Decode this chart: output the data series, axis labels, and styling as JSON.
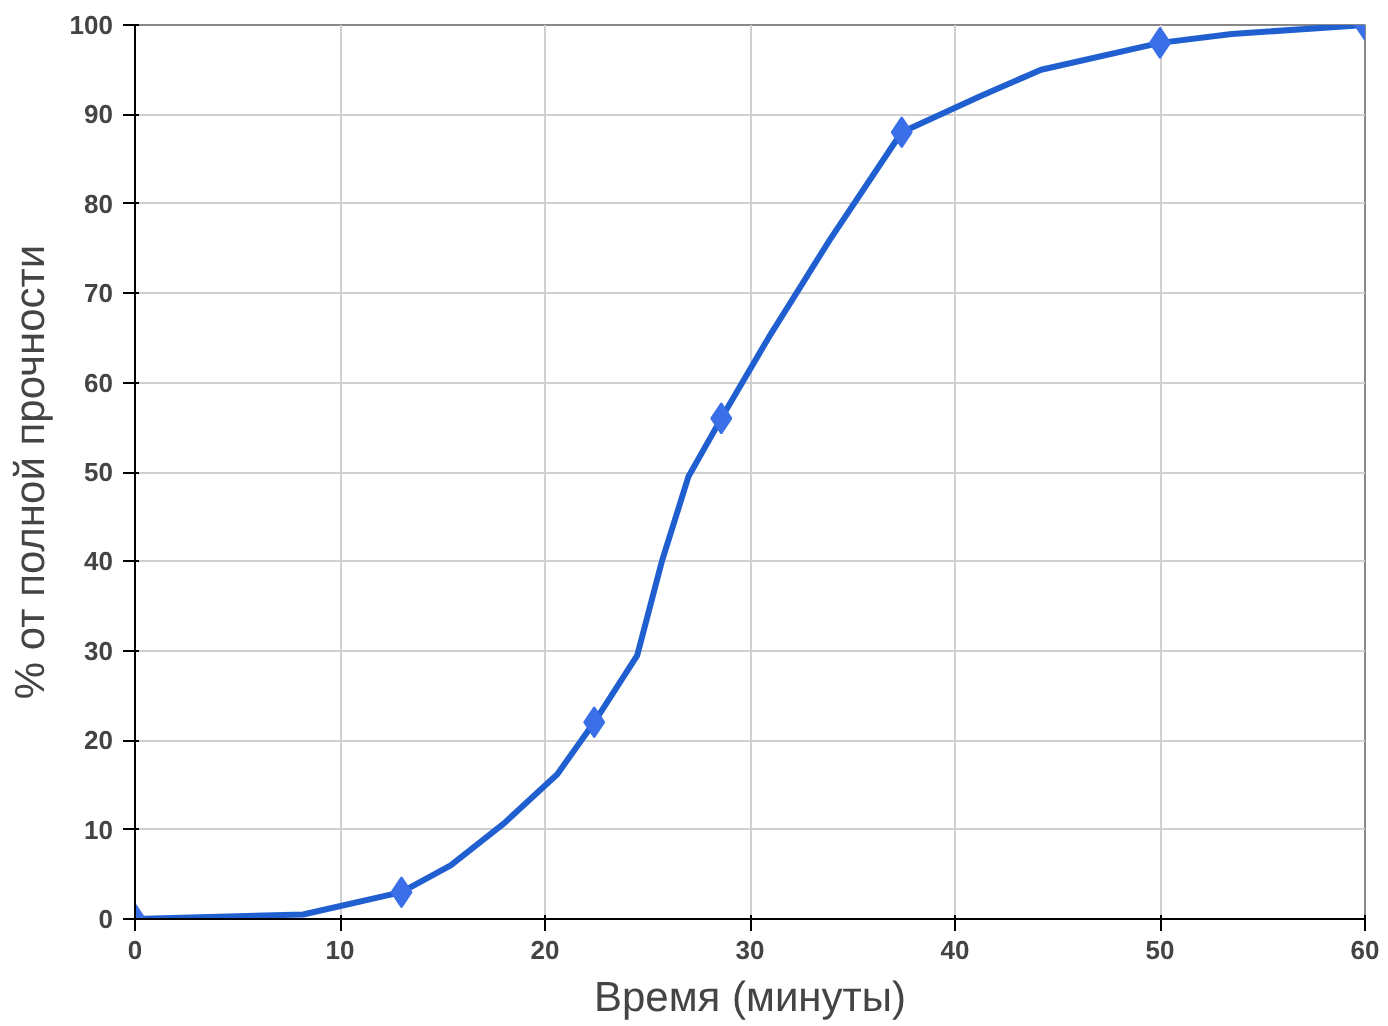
{
  "chart_data": {
    "type": "line",
    "xlabel": "Время (минуты)",
    "ylabel": "% от полной прочности",
    "xlim": [
      0,
      60
    ],
    "ylim": [
      0,
      100
    ],
    "xticks": [
      0,
      10,
      20,
      30,
      40,
      50,
      60
    ],
    "yticks": [
      0,
      10,
      20,
      30,
      40,
      50,
      60,
      70,
      80,
      90,
      100
    ],
    "grid": true,
    "series": [
      {
        "color": "#1f5fd0",
        "marker": "none",
        "x": [
          0,
          8.2,
          13,
          15.4,
          18,
          20.6,
          22.4,
          24.5,
          25.7,
          27,
          28.6,
          30.9,
          33.9,
          37.4,
          41.2,
          44.2,
          50,
          53.5,
          60
        ],
        "values": [
          0,
          0.5,
          3,
          6,
          10.7,
          16.2,
          22,
          29.5,
          40,
          49.5,
          56,
          65,
          76,
          88,
          92,
          95,
          98,
          99,
          100
        ]
      },
      {
        "type": "scatter",
        "color": "#3a6fe8",
        "marker": "diamond",
        "x": [
          0,
          13,
          22.4,
          28.6,
          37.4,
          50,
          60
        ],
        "values": [
          0,
          3,
          22,
          56,
          88,
          98,
          100
        ]
      }
    ]
  }
}
